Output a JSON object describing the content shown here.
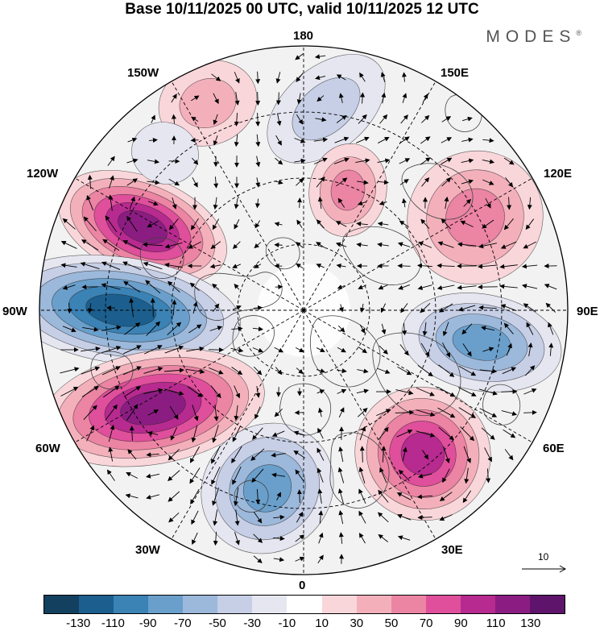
{
  "title": "Base 10/11/2025 00 UTC, valid 10/11/2025 12 UTC",
  "brand": "MODES",
  "brand_mark": "®",
  "longitude_labels": {
    "top": "180",
    "top_right": "150E",
    "right_upper": "120E",
    "right": "90E",
    "right_lower": "60E",
    "bottom_right": "30E",
    "bottom": "0",
    "bottom_left": "30W",
    "left_lower": "60W",
    "left": "90W",
    "left_upper": "120W",
    "top_left": "150W"
  },
  "reference_vector": {
    "label": "10"
  },
  "colorbar": {
    "colors": [
      "#14405f",
      "#1c5f8e",
      "#3b82b5",
      "#6a9fcb",
      "#9cb8da",
      "#c6cfe6",
      "#e6e6f1",
      "#ffffff",
      "#f9d6da",
      "#f3b0bb",
      "#ec84a4",
      "#df4f9b",
      "#b72a8f",
      "#8b1d82",
      "#5e146b"
    ],
    "tick_labels": [
      "-130",
      "-110",
      "-90",
      "-70",
      "-50",
      "-30",
      "-10",
      "10",
      "30",
      "50",
      "70",
      "90",
      "110",
      "130"
    ]
  },
  "anomaly_centers": [
    {
      "lon_label": "130W",
      "sign": "positive",
      "peak": 120
    },
    {
      "lon_label": "90W",
      "sign": "negative",
      "peak": -130
    },
    {
      "lon_label": "60W",
      "sign": "positive",
      "peak": 120
    },
    {
      "lon_label": "20W",
      "sign": "negative",
      "peak": -80
    },
    {
      "lon_label": "40E",
      "sign": "positive",
      "peak": 100
    },
    {
      "lon_label": "90E",
      "sign": "negative",
      "peak": -80
    },
    {
      "lon_label": "120E",
      "sign": "positive",
      "peak": 70
    },
    {
      "lon_label": "170E",
      "sign": "negative",
      "peak": -40
    },
    {
      "lon_label": "155W",
      "sign": "positive",
      "peak": 40
    },
    {
      "lon_label": "145W",
      "sign": "negative",
      "peak": -30
    },
    {
      "lon_label": "165E",
      "sign": "positive",
      "peak": 60
    }
  ]
}
